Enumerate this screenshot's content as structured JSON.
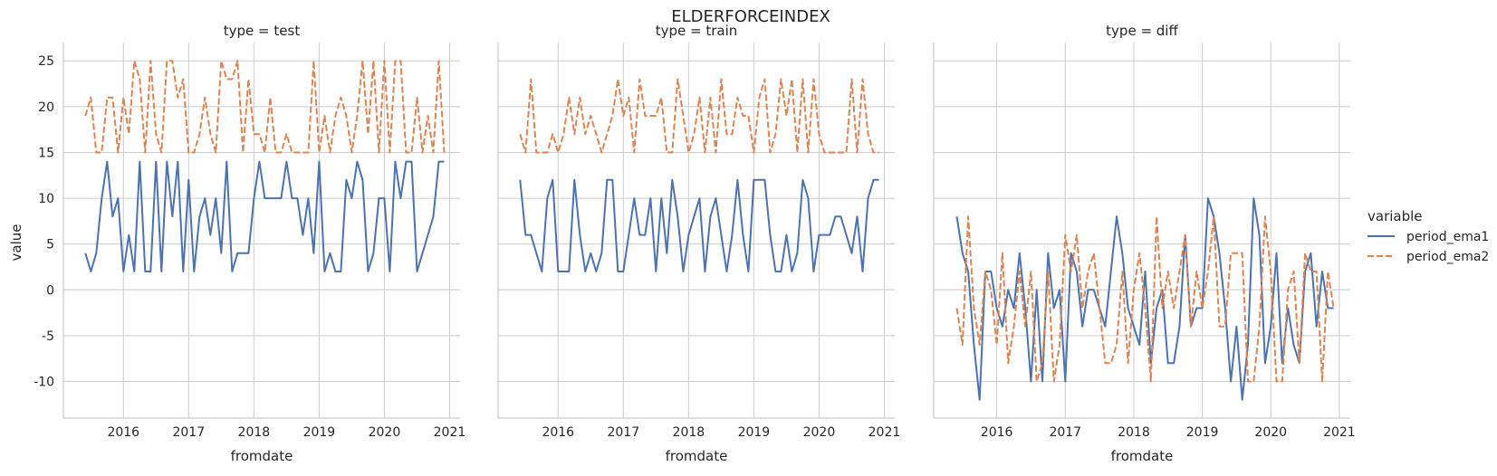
{
  "chart_data": {
    "type": "line",
    "title": "ELDERFORCEINDEX",
    "xlabel": "fromdate",
    "ylabel": "value",
    "ylim": [
      -14,
      27
    ],
    "yticks": [
      -10,
      -5,
      0,
      5,
      10,
      15,
      20,
      25
    ],
    "xlim": [
      2015.08,
      2021.16
    ],
    "xticks": [
      "2016",
      "2017",
      "2018",
      "2019",
      "2020",
      "2021"
    ],
    "grid": true,
    "legend": {
      "title": "variable",
      "placement": "right",
      "entries": [
        "period_ema1",
        "period_ema2"
      ]
    },
    "colors": {
      "period_ema1": "#4c72b0",
      "period_ema2": "#dd8452"
    },
    "x": [
      "2015-06",
      "2015-07",
      "2015-08",
      "2015-09",
      "2015-10",
      "2015-11",
      "2015-12",
      "2016-01",
      "2016-02",
      "2016-03",
      "2016-04",
      "2016-05",
      "2016-06",
      "2016-07",
      "2016-08",
      "2016-09",
      "2016-10",
      "2016-11",
      "2016-12",
      "2017-01",
      "2017-02",
      "2017-03",
      "2017-04",
      "2017-05",
      "2017-06",
      "2017-07",
      "2017-08",
      "2017-09",
      "2017-10",
      "2017-11",
      "2017-12",
      "2018-01",
      "2018-02",
      "2018-03",
      "2018-04",
      "2018-05",
      "2018-06",
      "2018-07",
      "2018-08",
      "2018-09",
      "2018-10",
      "2018-11",
      "2018-12",
      "2019-01",
      "2019-02",
      "2019-03",
      "2019-04",
      "2019-05",
      "2019-06",
      "2019-07",
      "2019-08",
      "2019-09",
      "2019-10",
      "2019-11",
      "2019-12",
      "2020-01",
      "2020-02",
      "2020-03",
      "2020-04",
      "2020-05",
      "2020-06",
      "2020-07",
      "2020-08",
      "2020-09",
      "2020-10",
      "2020-11",
      "2020-12"
    ],
    "facets": [
      {
        "title": "type = test",
        "series": [
          {
            "name": "period_ema1",
            "style": "solid",
            "values": [
              4,
              2,
              4,
              10,
              14,
              8,
              10,
              2,
              6,
              2,
              14,
              2,
              2,
              14,
              2,
              14,
              8,
              14,
              2,
              12,
              2,
              8,
              10,
              6,
              10,
              4,
              14,
              2,
              4,
              4,
              4,
              10,
              14,
              10,
              10,
              10,
              10,
              14,
              10,
              10,
              6,
              10,
              4,
              14,
              2,
              4,
              2,
              2,
              12,
              10,
              14,
              12,
              2,
              4,
              10,
              10,
              2,
              14,
              10,
              14,
              14,
              2,
              4,
              6,
              8,
              14,
              14
            ]
          },
          {
            "name": "period_ema2",
            "style": "dashed",
            "values": [
              19,
              21,
              15,
              15,
              21,
              21,
              15,
              21,
              17,
              25,
              23,
              15,
              25,
              17,
              15,
              25,
              25,
              21,
              23,
              15,
              15,
              17,
              21,
              17,
              15,
              25,
              23,
              23,
              25,
              15,
              23,
              17,
              17,
              15,
              21,
              15,
              15,
              17,
              15,
              15,
              15,
              15,
              25,
              15,
              19,
              15,
              19,
              21,
              19,
              15,
              19,
              25,
              17,
              25,
              15,
              25,
              15,
              25,
              25,
              15,
              15,
              21,
              15,
              19,
              15,
              25,
              15
            ]
          }
        ]
      },
      {
        "title": "type = train",
        "series": [
          {
            "name": "period_ema1",
            "style": "solid",
            "values": [
              12,
              6,
              6,
              4,
              2,
              10,
              12,
              2,
              2,
              2,
              12,
              6,
              2,
              4,
              2,
              4,
              12,
              12,
              2,
              2,
              6,
              10,
              6,
              6,
              10,
              2,
              10,
              4,
              12,
              8,
              2,
              6,
              8,
              10,
              2,
              8,
              10,
              6,
              2,
              6,
              12,
              6,
              2,
              12,
              12,
              12,
              6,
              2,
              2,
              6,
              2,
              4,
              12,
              10,
              2,
              6,
              6,
              6,
              8,
              8,
              6,
              4,
              8,
              2,
              10,
              12,
              12
            ]
          },
          {
            "name": "period_ema2",
            "style": "dashed",
            "values": [
              17,
              15,
              23,
              15,
              15,
              15,
              17,
              15,
              17,
              21,
              17,
              21,
              17,
              19,
              17,
              15,
              17,
              19,
              23,
              19,
              21,
              15,
              23,
              19,
              19,
              19,
              21,
              15,
              15,
              23,
              19,
              15,
              17,
              21,
              15,
              21,
              15,
              23,
              17,
              17,
              21,
              19,
              19,
              15,
              21,
              23,
              15,
              17,
              23,
              19,
              23,
              15,
              23,
              15,
              23,
              17,
              15,
              15,
              15,
              15,
              15,
              23,
              15,
              23,
              17,
              15,
              15
            ]
          }
        ]
      },
      {
        "title": "type = diff",
        "series": [
          {
            "name": "period_ema1",
            "style": "solid",
            "values": [
              8,
              4,
              2,
              -6,
              -12,
              2,
              2,
              -2,
              -4,
              0,
              -2,
              4,
              -2,
              -10,
              0,
              -10,
              4,
              -2,
              0,
              -10,
              4,
              2,
              -4,
              0,
              0,
              -2,
              -4,
              2,
              8,
              4,
              -2,
              -4,
              -6,
              2,
              -8,
              -2,
              0,
              -8,
              -8,
              -4,
              6,
              -4,
              -2,
              -2,
              10,
              8,
              4,
              -2,
              -10,
              -4,
              -12,
              -6,
              10,
              6,
              -8,
              -4,
              4,
              -8,
              -2,
              -6,
              -8,
              2,
              4,
              -4,
              2,
              -2,
              -2
            ]
          },
          {
            "name": "period_ema2",
            "style": "dashed",
            "values": [
              -2,
              -6,
              8,
              -2,
              -6,
              2,
              0,
              -6,
              4,
              -8,
              -4,
              2,
              -4,
              2,
              -10,
              -8,
              2,
              -10,
              -6,
              6,
              2,
              6,
              -2,
              2,
              4,
              -2,
              -8,
              -8,
              -6,
              2,
              -8,
              0,
              4,
              -2,
              -10,
              8,
              -2,
              2,
              -2,
              2,
              6,
              -4,
              2,
              -2,
              2,
              8,
              -4,
              -4,
              4,
              4,
              4,
              -10,
              -10,
              -4,
              8,
              2,
              -10,
              -10,
              0,
              2,
              -8,
              4,
              2,
              2,
              -10,
              2,
              -2
            ]
          }
        ]
      }
    ]
  }
}
